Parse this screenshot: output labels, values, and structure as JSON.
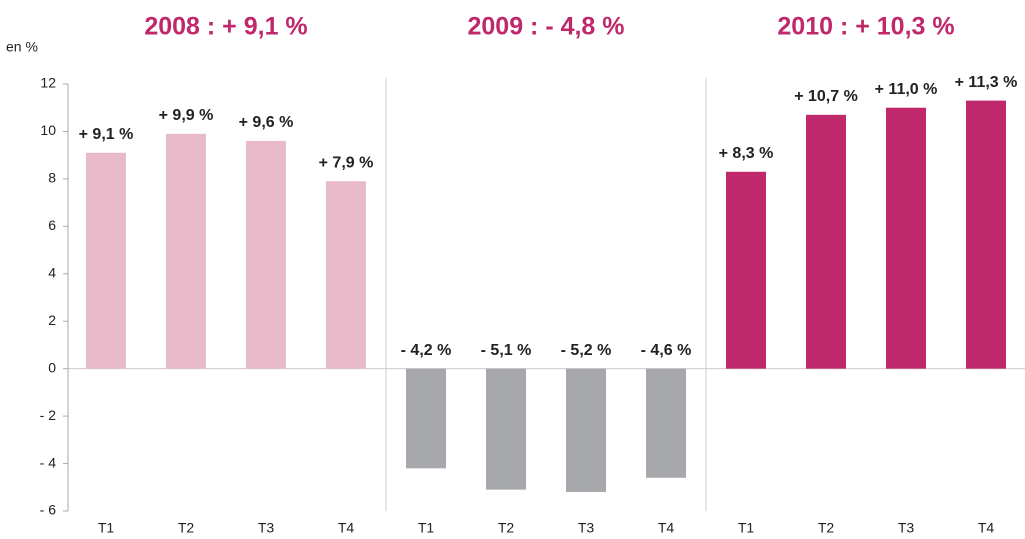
{
  "chart_data": {
    "type": "bar",
    "y_label": "en %",
    "ylim": [
      -6,
      12
    ],
    "yticks": [
      {
        "value": -6,
        "label": "- 6"
      },
      {
        "value": -4,
        "label": "- 4"
      },
      {
        "value": -2,
        "label": "- 2"
      },
      0,
      2,
      4,
      6,
      8,
      10,
      12
    ],
    "groups": [
      {
        "title": "2008 : + 9,1 %",
        "color": "#e8b9c9",
        "categories": [
          "T1",
          "T2",
          "T3",
          "T4"
        ],
        "values": [
          9.1,
          9.9,
          9.6,
          7.9
        ],
        "value_labels": [
          "+ 9,1 %",
          "+ 9,9 %",
          "+ 9,6 %",
          "+ 7,9 %"
        ]
      },
      {
        "title": "2009 : - 4,8 %",
        "color": "#a7a8ab",
        "categories": [
          "T1",
          "T2",
          "T3",
          "T4"
        ],
        "values": [
          -4.2,
          -5.1,
          -5.2,
          -4.6
        ],
        "value_labels": [
          "- 4,2 %",
          "- 5,1 %",
          "- 5,2 %",
          "- 4,6 %"
        ]
      },
      {
        "title": "2010 : + 10,3 %",
        "color": "#c0286c",
        "categories": [
          "T1",
          "T2",
          "T3",
          "T4"
        ],
        "values": [
          8.3,
          10.7,
          11.0,
          11.3
        ],
        "value_labels": [
          "+ 8,3 %",
          "+ 10,7 %",
          "+ 11,0 %",
          "+ 11,3 %"
        ]
      }
    ]
  }
}
